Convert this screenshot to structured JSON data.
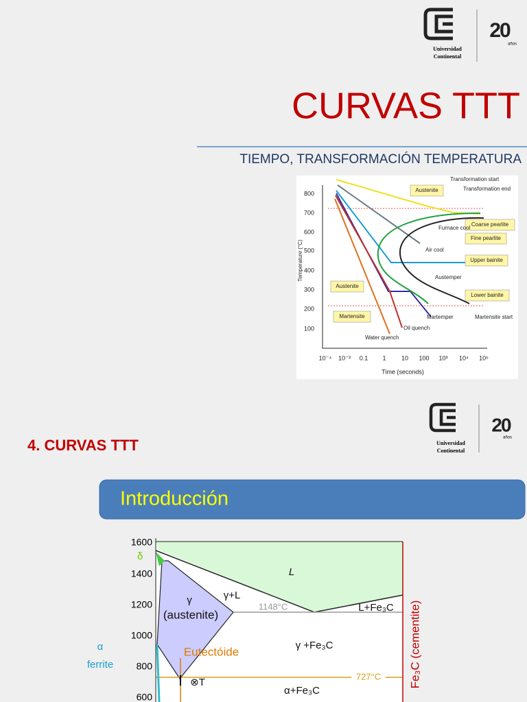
{
  "slide1": {
    "logo": {
      "line1": "Universidad",
      "line2": "Continental",
      "mark": "20",
      "anos": "años"
    },
    "title": "CURVAS TTT",
    "subtitle": "TIEMPO, TRANSFORMACIÓN TEMPERATURA",
    "figure": {
      "yticks": [
        "800",
        "700",
        "600",
        "500",
        "400",
        "300",
        "200",
        "100"
      ],
      "xticks": [
        "10⁻⁴",
        "10⁻³",
        "0.1",
        "1",
        "10",
        "100",
        "10³",
        "10⁴",
        "10⁵"
      ],
      "y_label": "Temperature (°C)",
      "x_label": "Time (seconds)",
      "labels": {
        "transformation_start": "Transformation start",
        "transformation_end": "Transformation end",
        "austenite_top": "Austenite",
        "coarse_pearlite": "Coarse pearlite",
        "fine_pearlite": "Fine pearlite",
        "upper_bainite": "Upper bainite",
        "lower_bainite": "Lower bainite",
        "furnace_cool": "Furnace cool",
        "air_cool": "Air cool",
        "austemper": "Austemper",
        "martemper": "Martemper",
        "martensite_start": "Martensite start",
        "oil_quench": "Oil quench",
        "water_quench": "Water quench",
        "austenite_left": "Austenite",
        "martensite": "Martensite"
      }
    }
  },
  "slide2": {
    "logo": {
      "line1": "Universidad",
      "line2": "Continental",
      "mark": "20",
      "anos": "años"
    },
    "heading": "4. CURVAS TTT",
    "box": "Introducción",
    "diagram": {
      "yticks": [
        "1600",
        "1400",
        "1200",
        "1000",
        "800",
        "600"
      ],
      "labels": {
        "delta": "δ",
        "alpha": "α",
        "ferrite": "ferrite",
        "gamma": "γ",
        "austenite": "(austenite)",
        "gamma_l": "γ+L",
        "l": "L",
        "l_fe3c": "L+Fe₃C",
        "t1148": "1148°C",
        "gamma_fe3c": "γ +Fe₃C",
        "eutectoide": "Eutectóide",
        "t": "⊗T",
        "t727": "727°C",
        "alpha_fe3c": "α+Fe₃C",
        "cementite": "Fe₃C (cementite)"
      }
    }
  }
}
